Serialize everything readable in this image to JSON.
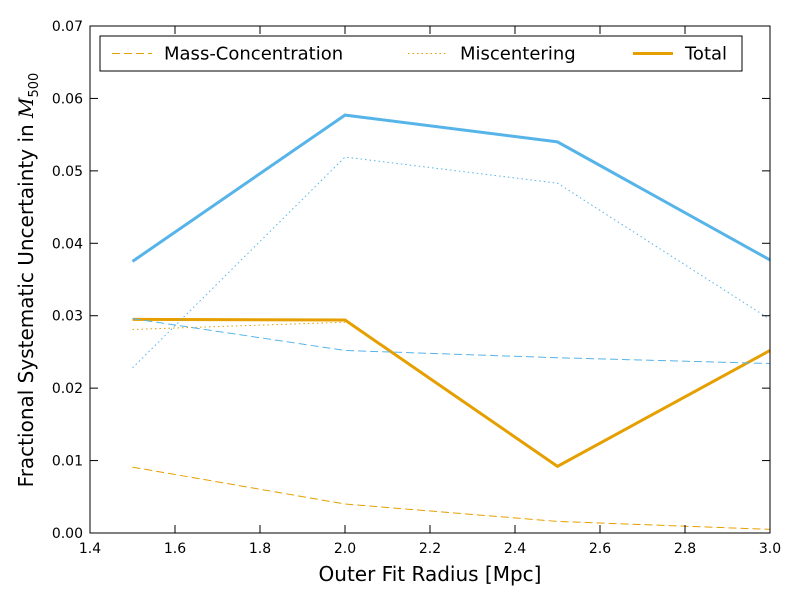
{
  "chart_data": {
    "type": "line",
    "title": "",
    "xlabel": "Outer Fit Radius [Mpc]",
    "ylabel": {
      "text": "Fractional Systematic Uncertainty in ",
      "symbol": "M",
      "subscript": "500"
    },
    "xlim": [
      1.4,
      3.0
    ],
    "ylim": [
      0.0,
      0.07
    ],
    "xticks": [
      "1.4",
      "1.6",
      "1.8",
      "2.0",
      "2.2",
      "2.4",
      "2.6",
      "2.8",
      "3.0"
    ],
    "yticks": [
      "0.00",
      "0.01",
      "0.02",
      "0.03",
      "0.04",
      "0.05",
      "0.06",
      "0.07"
    ],
    "x": [
      1.5,
      2.0,
      2.5,
      3.0
    ],
    "legend": {
      "placement": "top",
      "entries": [
        {
          "label": "Mass-Concentration",
          "style": "dashed"
        },
        {
          "label": "Miscentering",
          "style": "dotted"
        },
        {
          "label": "Total",
          "style": "solid"
        }
      ]
    },
    "colors": {
      "orange": "#E69F00",
      "blue": "#56B4E9"
    },
    "series": [
      {
        "color": "orange",
        "style": "dashed",
        "values": [
          0.0091,
          0.004,
          0.0016,
          0.0005
        ]
      },
      {
        "color": "orange",
        "style": "dotted",
        "values": [
          0.0281,
          0.0291,
          null,
          null
        ]
      },
      {
        "color": "orange",
        "style": "solid",
        "values": [
          0.0295,
          0.0294,
          0.0092,
          0.0252
        ]
      },
      {
        "color": "blue",
        "style": "dashed",
        "values": [
          0.0296,
          0.0252,
          0.0242,
          0.0234
        ]
      },
      {
        "color": "blue",
        "style": "dotted",
        "values": [
          0.0228,
          0.0519,
          0.0483,
          0.0295
        ]
      },
      {
        "color": "blue",
        "style": "solid",
        "values": [
          0.0375,
          0.0577,
          0.054,
          0.0377
        ]
      }
    ]
  }
}
